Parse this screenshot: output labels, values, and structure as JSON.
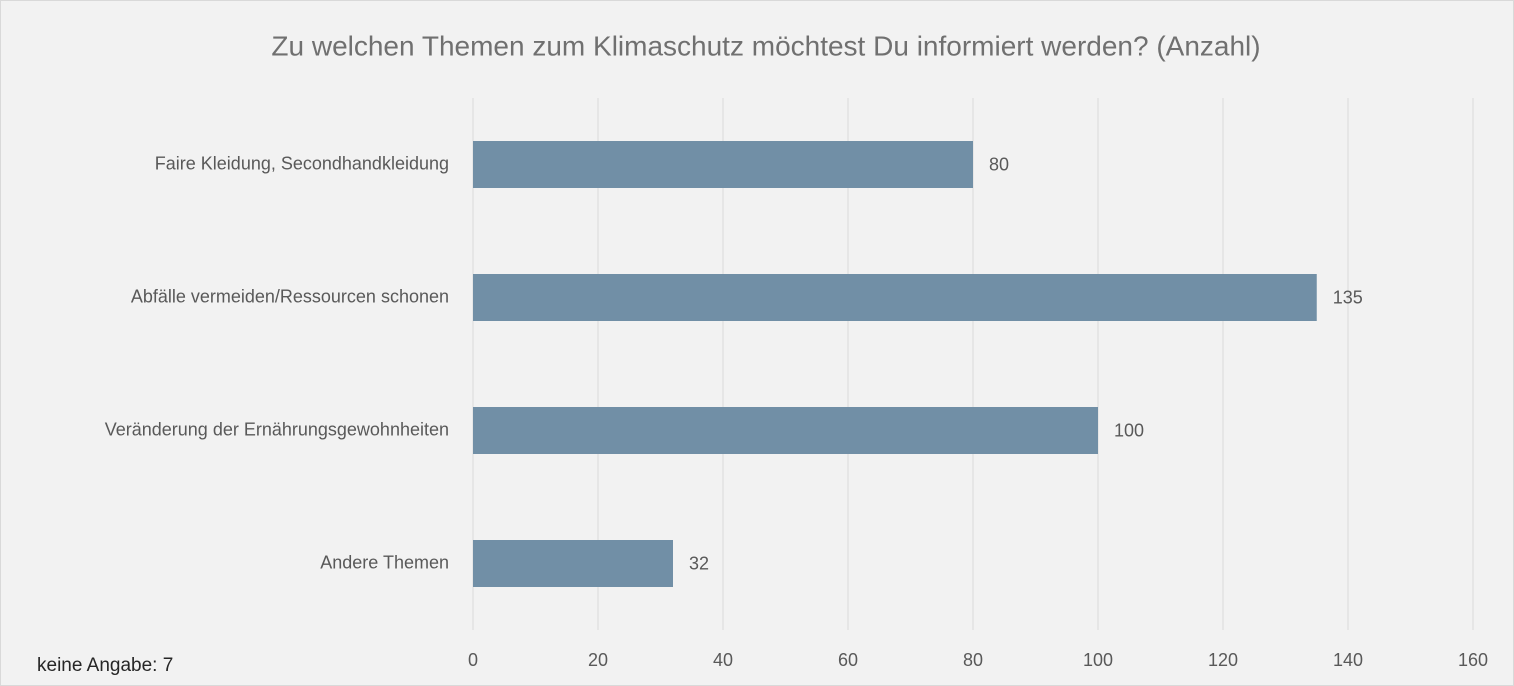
{
  "chart_data": {
    "type": "bar",
    "orientation": "horizontal",
    "title": "Zu welchen Themen zum Klimaschutz möchtest Du informiert werden? (Anzahl)",
    "categories": [
      "Faire Kleidung, Secondhandkleidung",
      "Abfälle vermeiden/Ressourcen schonen",
      "Veränderung der Ernährungsgewohnheiten",
      "Andere Themen"
    ],
    "values": [
      80,
      135,
      100,
      32
    ],
    "color": "#718fa6",
    "xlim": [
      0,
      160
    ],
    "xticks": [
      0,
      20,
      40,
      60,
      80,
      100,
      120,
      140,
      160
    ],
    "grid": true,
    "annotation": "keine Angabe: 7"
  }
}
